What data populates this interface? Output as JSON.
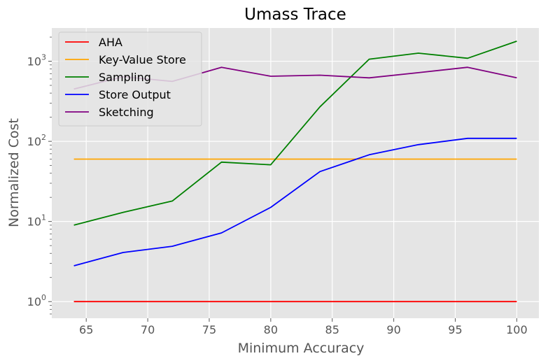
{
  "chart_data": {
    "type": "line",
    "title": "Umass Trace",
    "xlabel": "Minimum Accuracy",
    "ylabel": "Normalized Cost",
    "y_scale": "log",
    "xlim": [
      62.2,
      101.8
    ],
    "ylim": [
      0.62,
      2600
    ],
    "x_ticks": [
      65,
      70,
      75,
      80,
      85,
      90,
      95,
      100
    ],
    "x_tick_labels": [
      "65",
      "70",
      "75",
      "80",
      "85",
      "90",
      "95",
      "100"
    ],
    "y_ticks": [
      1,
      10,
      100,
      1000
    ],
    "y_tick_labels": [
      {
        "base": "10",
        "exp": "0"
      },
      {
        "base": "10",
        "exp": "1"
      },
      {
        "base": "10",
        "exp": "2"
      },
      {
        "base": "10",
        "exp": "3"
      }
    ],
    "grid": true,
    "legend_position": "upper-left",
    "x": [
      64,
      68,
      72,
      76,
      80,
      84,
      88,
      92,
      96,
      100
    ],
    "series": [
      {
        "name": "AHA",
        "color": "#ff0000",
        "values": [
          1,
          1,
          1,
          1,
          1,
          1,
          1,
          1,
          1,
          1
        ]
      },
      {
        "name": "Key-Value Store",
        "color": "#ffa500",
        "values": [
          60,
          60,
          60,
          60,
          60,
          60,
          60,
          60,
          60,
          60
        ]
      },
      {
        "name": "Sampling",
        "color": "#008000",
        "values": [
          9,
          13,
          18,
          55,
          51,
          270,
          1060,
          1260,
          1090,
          1780
        ]
      },
      {
        "name": "Store Output",
        "color": "#0000ff",
        "values": [
          2.8,
          4.1,
          4.9,
          7.2,
          15,
          42,
          68,
          91,
          109,
          109
        ]
      },
      {
        "name": "Sketching",
        "color": "#800080",
        "values": [
          450,
          640,
          560,
          840,
          650,
          670,
          620,
          720,
          840,
          620
        ]
      }
    ]
  }
}
